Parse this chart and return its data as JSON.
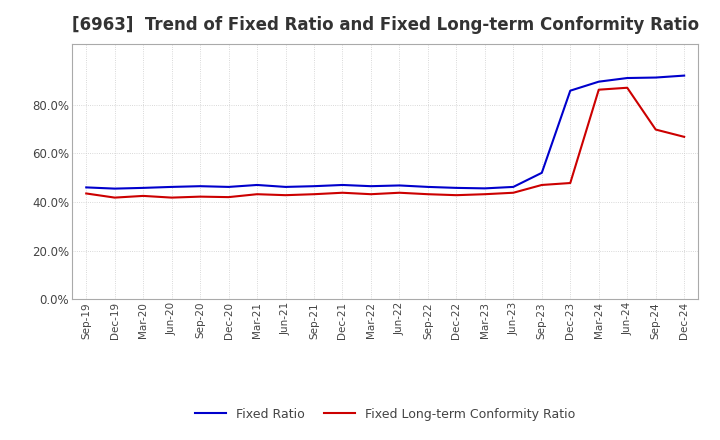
{
  "title": "[6963]  Trend of Fixed Ratio and Fixed Long-term Conformity Ratio",
  "x_labels": [
    "Sep-19",
    "Dec-19",
    "Mar-20",
    "Jun-20",
    "Sep-20",
    "Dec-20",
    "Mar-21",
    "Jun-21",
    "Sep-21",
    "Dec-21",
    "Mar-22",
    "Jun-22",
    "Sep-22",
    "Dec-22",
    "Mar-23",
    "Jun-23",
    "Sep-23",
    "Dec-23",
    "Mar-24",
    "Jun-24",
    "Sep-24",
    "Dec-24"
  ],
  "fixed_ratio": [
    0.46,
    0.455,
    0.458,
    0.462,
    0.465,
    0.462,
    0.47,
    0.462,
    0.465,
    0.47,
    0.465,
    0.468,
    0.462,
    0.458,
    0.456,
    0.462,
    0.52,
    0.858,
    0.895,
    0.91,
    0.912,
    0.92
  ],
  "fixed_lt_ratio": [
    0.435,
    0.418,
    0.425,
    0.418,
    0.422,
    0.42,
    0.432,
    0.428,
    0.432,
    0.438,
    0.432,
    0.438,
    0.432,
    0.428,
    0.432,
    0.438,
    0.47,
    0.478,
    0.862,
    0.87,
    0.698,
    0.668
  ],
  "fixed_ratio_color": "#0000cc",
  "fixed_lt_ratio_color": "#cc0000",
  "ylim": [
    0.0,
    1.05
  ],
  "yticks": [
    0.0,
    0.2,
    0.4,
    0.6,
    0.8
  ],
  "background_color": "#ffffff",
  "grid_color": "#cccccc",
  "title_fontsize": 12
}
